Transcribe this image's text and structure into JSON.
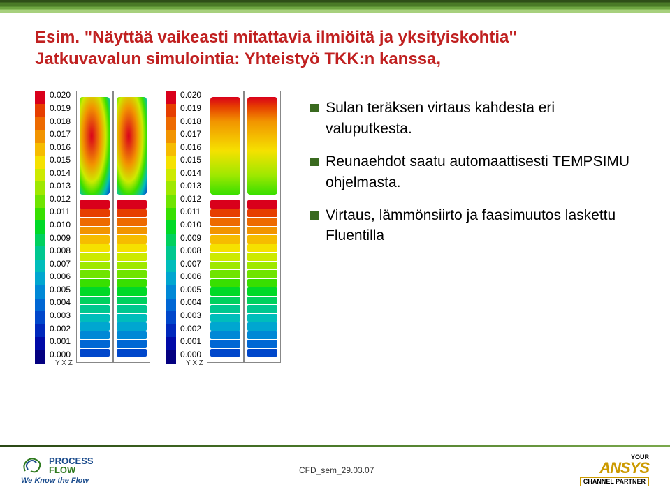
{
  "stripes": [
    "#2f4f18",
    "#3c641f",
    "#4a7a27",
    "#5a8f32",
    "#6fa642",
    "#8abd5c",
    "#a7d07d"
  ],
  "title_line1": "Esim. \"Näyttää vaikeasti mitattavia ilmiöitä ja yksityiskohtia\"",
  "title_line2": "Jatkuvavalun simulointia: Yhteistyö TKK:n kanssa,",
  "title_color": "#c02020",
  "legend_values": [
    "0.020",
    "0.019",
    "0.018",
    "0.017",
    "0.016",
    "0.015",
    "0.014",
    "0.013",
    "0.012",
    "0.011",
    "0.010",
    "0.009",
    "0.008",
    "0.007",
    "0.006",
    "0.005",
    "0.004",
    "0.003",
    "0.002",
    "0.001",
    "0.000"
  ],
  "rainbow_colors": [
    "#d9001b",
    "#e63e00",
    "#ed6a00",
    "#f29400",
    "#f6bc00",
    "#f5e100",
    "#cdea00",
    "#9fe800",
    "#6fe400",
    "#38df00",
    "#00d927",
    "#00d15e",
    "#00c78f",
    "#00bdbb",
    "#00a6d0",
    "#0088d6",
    "#0067d4",
    "#0047cb",
    "#0028bc",
    "#000aa8",
    "#040080"
  ],
  "axis_label": "Y X Z",
  "bullets": [
    "Sulan teräksen virtaus kahdesta eri valuputkesta.",
    "Reunaehdot saatu automaattisesti TEMPSIMU ohjelmasta.",
    "Virtaus, lämmönsiirto ja faasimuutos laskettu Fluentilla"
  ],
  "footer": {
    "process": "PROCESS",
    "flow": "FLOW",
    "tagline": "We Know the Flow",
    "center": "CFD_sem_29.03.07",
    "your": "YOUR",
    "ansys": "ANSYS",
    "channel": "CHANNEL PARTNER"
  },
  "panel1_top_gradient": "radial-gradient(ellipse at 40% 40%, #d9001b 0%, #f29400 35%, #cdea00 55%, #38df00 70%, #00bdbb 85%, #0047cb 100%)",
  "panel2_top_gradient": "linear-gradient(180deg,#d9001b 0%,#e63e00 10%,#f29400 25%,#f5e100 55%,#9fe800 80%,#38df00 100%)",
  "flow_band_colors": [
    "#d9001b",
    "#e63e00",
    "#ed6a00",
    "#f29400",
    "#f6bc00",
    "#f5e100",
    "#cdea00",
    "#9fe800",
    "#6fe400",
    "#38df00",
    "#00d927",
    "#00d15e",
    "#00c78f",
    "#00bdbb",
    "#00a6d0",
    "#0088d6",
    "#0067d4",
    "#0047cb"
  ]
}
